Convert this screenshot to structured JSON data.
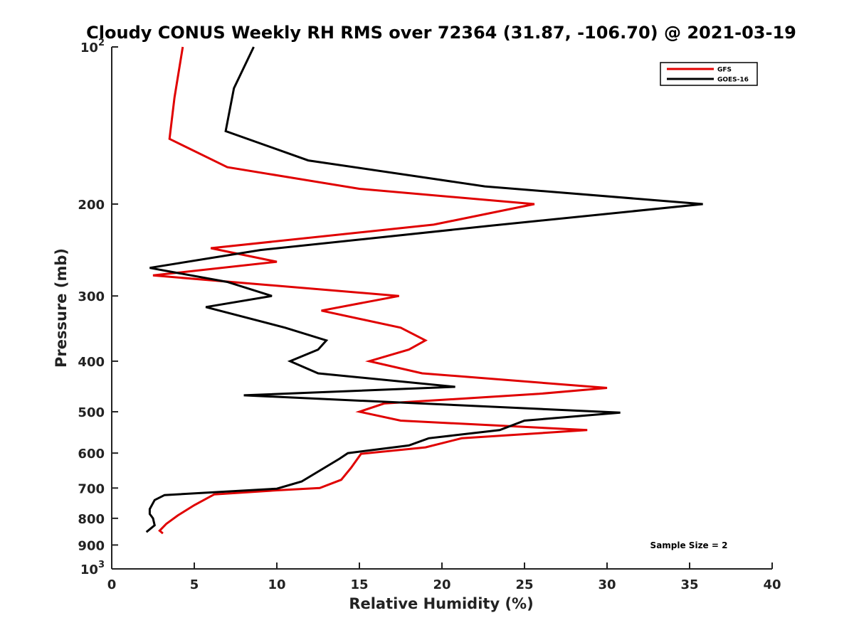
{
  "chart_data": {
    "type": "line",
    "title": "Cloudy CONUS Weekly RH RMS over 72364 (31.87, -106.70) @ 2021-03-19",
    "xlabel": "Relative Humidity (%)",
    "ylabel": "Pressure (mb)",
    "xlim": [
      0,
      40
    ],
    "ylim": [
      100,
      1000
    ],
    "y_scale": "log",
    "y_reversed": true,
    "x_ticks": [
      0,
      5,
      10,
      15,
      20,
      25,
      30,
      35,
      40
    ],
    "y_ticks": [
      {
        "value": 100,
        "label": "10",
        "sup": "2"
      },
      {
        "value": 200,
        "label": "200",
        "sup": ""
      },
      {
        "value": 300,
        "label": "300",
        "sup": ""
      },
      {
        "value": 400,
        "label": "400",
        "sup": ""
      },
      {
        "value": 500,
        "label": "500",
        "sup": ""
      },
      {
        "value": 600,
        "label": "600",
        "sup": ""
      },
      {
        "value": 700,
        "label": "700",
        "sup": ""
      },
      {
        "value": 800,
        "label": "800",
        "sup": ""
      },
      {
        "value": 900,
        "label": "900",
        "sup": ""
      },
      {
        "value": 1000,
        "label": "10",
        "sup": "3"
      }
    ],
    "grid": false,
    "legend_position": "top-right",
    "series": [
      {
        "name": "GFS",
        "color": "#e00000",
        "points": [
          [
            4.3,
            100
          ],
          [
            3.8,
            125
          ],
          [
            3.5,
            150
          ],
          [
            7.0,
            170
          ],
          [
            15.0,
            187
          ],
          [
            25.6,
            200
          ],
          [
            19.5,
            219
          ],
          [
            6.0,
            243
          ],
          [
            10.0,
            258
          ],
          [
            2.5,
            274
          ],
          [
            17.4,
            300
          ],
          [
            12.7,
            320
          ],
          [
            17.5,
            345
          ],
          [
            19.0,
            365
          ],
          [
            18.0,
            380
          ],
          [
            15.6,
            400
          ],
          [
            18.8,
            422
          ],
          [
            30.0,
            450
          ],
          [
            25.9,
            462
          ],
          [
            16.5,
            482
          ],
          [
            15.0,
            500
          ],
          [
            17.5,
            520
          ],
          [
            28.8,
            542
          ],
          [
            21.2,
            562
          ],
          [
            19.0,
            585
          ],
          [
            15.1,
            602
          ],
          [
            14.5,
            640
          ],
          [
            13.9,
            675
          ],
          [
            12.6,
            700
          ],
          [
            10.0,
            707
          ],
          [
            6.2,
            720
          ],
          [
            5.0,
            755
          ],
          [
            4.0,
            790
          ],
          [
            3.3,
            820
          ],
          [
            2.9,
            845
          ],
          [
            3.1,
            855
          ]
        ]
      },
      {
        "name": "GOES-16",
        "color": "#000000",
        "points": [
          [
            8.6,
            100
          ],
          [
            7.4,
            120
          ],
          [
            6.9,
            145
          ],
          [
            11.9,
            165
          ],
          [
            22.6,
            185
          ],
          [
            35.8,
            200
          ],
          [
            23.0,
            220
          ],
          [
            9.0,
            245
          ],
          [
            2.3,
            265
          ],
          [
            7.0,
            282
          ],
          [
            9.7,
            300
          ],
          [
            5.7,
            315
          ],
          [
            10.5,
            345
          ],
          [
            13.0,
            365
          ],
          [
            12.5,
            380
          ],
          [
            10.8,
            400
          ],
          [
            12.5,
            422
          ],
          [
            20.8,
            448
          ],
          [
            8.0,
            465
          ],
          [
            30.8,
            502
          ],
          [
            25.0,
            520
          ],
          [
            23.5,
            542
          ],
          [
            19.2,
            562
          ],
          [
            18.0,
            580
          ],
          [
            14.3,
            600
          ],
          [
            13.8,
            615
          ],
          [
            11.5,
            680
          ],
          [
            10.0,
            702
          ],
          [
            3.2,
            722
          ],
          [
            2.6,
            738
          ],
          [
            2.3,
            768
          ],
          [
            2.3,
            785
          ],
          [
            2.5,
            800
          ],
          [
            2.6,
            825
          ],
          [
            2.1,
            850
          ]
        ]
      }
    ],
    "annotation": "Sample Size = 2"
  }
}
